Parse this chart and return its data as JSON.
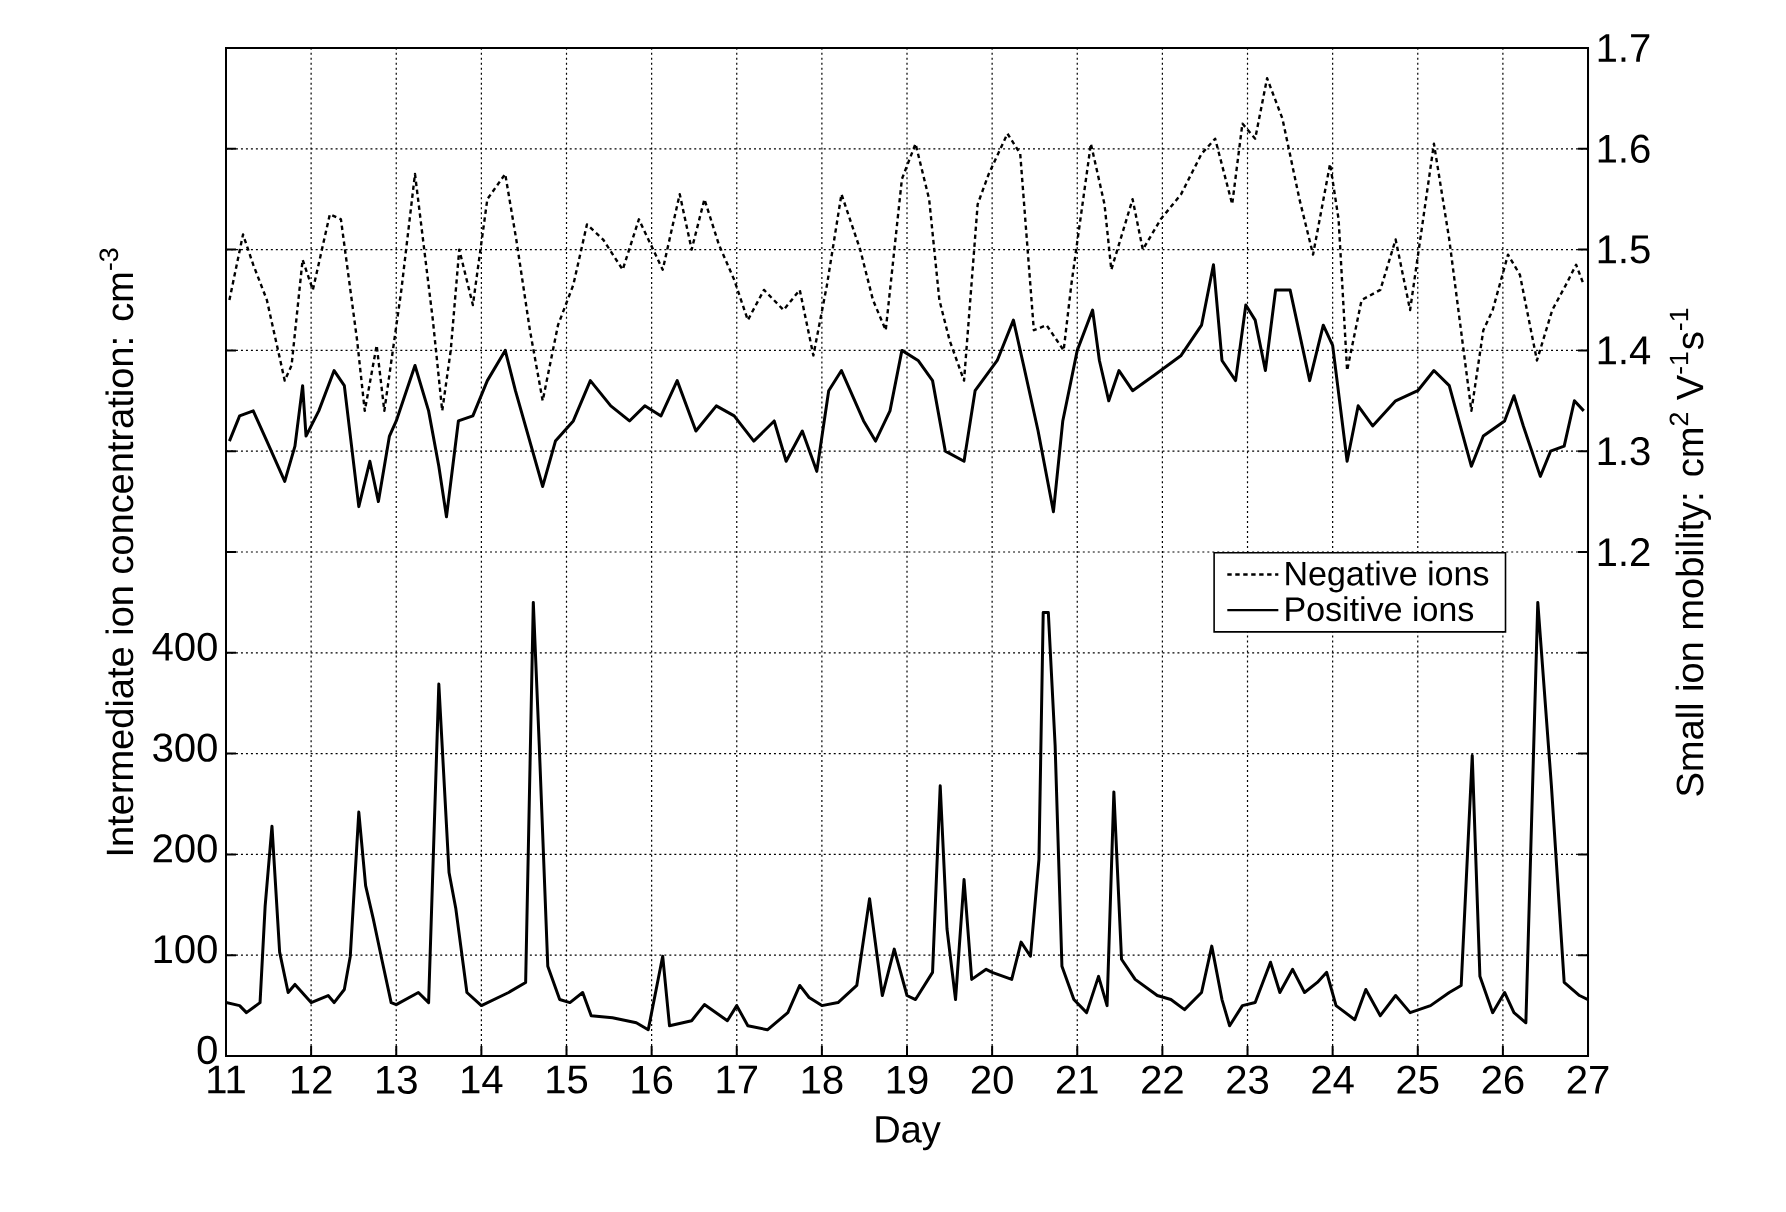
{
  "chart_data": {
    "type": "line",
    "xlabel": "Day",
    "ylabel": "Intermediate ion concentration:  cm$^{-3}$",
    "y2label": "Small ion mobility: cm$^{2}$ V$^{-1}$s$^{-1}$",
    "xlim": [
      11,
      27
    ],
    "xticks": [
      11,
      12,
      13,
      14,
      15,
      16,
      17,
      18,
      19,
      20,
      21,
      22,
      23,
      24,
      25,
      26,
      27
    ],
    "ylim": [
      0,
      1000
    ],
    "yticks": [
      0,
      100,
      200,
      300,
      400,
      {
        "value": 500,
        "label": null
      },
      {
        "value": 600,
        "label": null
      },
      {
        "value": 700,
        "label": null
      },
      {
        "value": 800,
        "label": null
      },
      {
        "value": 900,
        "label": null
      }
    ],
    "y2lim": [
      0.7,
      1.7
    ],
    "y2ticks": [
      {
        "value": 0.8,
        "label": null
      },
      {
        "value": 0.9,
        "label": null
      },
      {
        "value": 1.0,
        "label": null
      },
      {
        "value": 1.1,
        "label": null
      },
      1.2,
      1.3,
      1.4,
      1.5,
      1.6,
      1.7
    ],
    "grid": true,
    "legend": "right",
    "series": [
      {
        "name": "Negative ions",
        "color": "#000000",
        "axis": "y2",
        "line_style": "dotted",
        "x": [
          11.04,
          11.2,
          11.32,
          11.48,
          11.69,
          11.77,
          11.9,
          12.02,
          12.22,
          12.35,
          12.54,
          12.63,
          12.77,
          12.86,
          13.06,
          13.22,
          13.43,
          13.54,
          13.64,
          13.74,
          13.9,
          14.07,
          14.28,
          14.41,
          14.57,
          14.72,
          14.9,
          15.08,
          15.24,
          15.43,
          15.66,
          15.85,
          16.13,
          16.33,
          16.47,
          16.62,
          16.79,
          16.97,
          17.13,
          17.32,
          17.55,
          17.74,
          17.9,
          18.06,
          18.23,
          18.45,
          18.6,
          18.75,
          18.94,
          19.1,
          19.26,
          19.38,
          19.5,
          19.67,
          19.83,
          19.96,
          20.18,
          20.33,
          20.49,
          20.64,
          20.84,
          20.93,
          21.16,
          21.32,
          21.4,
          21.65,
          21.77,
          21.98,
          22.22,
          22.46,
          22.62,
          22.82,
          22.94,
          23.09,
          23.23,
          23.41,
          23.61,
          23.77,
          23.97,
          24.07,
          24.17,
          24.34,
          24.56,
          24.74,
          24.91,
          25.19,
          25.37,
          25.63,
          25.77,
          25.88,
          26.06,
          26.2,
          26.4,
          26.58,
          26.74,
          26.86,
          26.95
        ],
        "values": [
          1.45,
          1.515,
          1.485,
          1.45,
          1.37,
          1.385,
          1.49,
          1.46,
          1.535,
          1.53,
          1.41,
          1.34,
          1.405,
          1.34,
          1.46,
          1.575,
          1.43,
          1.34,
          1.4,
          1.5,
          1.445,
          1.55,
          1.575,
          1.51,
          1.42,
          1.35,
          1.425,
          1.465,
          1.525,
          1.51,
          1.48,
          1.53,
          1.48,
          1.555,
          1.5,
          1.55,
          1.505,
          1.47,
          1.43,
          1.46,
          1.44,
          1.46,
          1.395,
          1.465,
          1.555,
          1.5,
          1.45,
          1.42,
          1.57,
          1.605,
          1.55,
          1.45,
          1.41,
          1.37,
          1.545,
          1.575,
          1.615,
          1.595,
          1.42,
          1.425,
          1.4,
          1.465,
          1.605,
          1.545,
          1.48,
          1.55,
          1.5,
          1.53,
          1.555,
          1.595,
          1.61,
          1.545,
          1.625,
          1.61,
          1.67,
          1.63,
          1.55,
          1.495,
          1.585,
          1.53,
          1.38,
          1.45,
          1.46,
          1.51,
          1.44,
          1.605,
          1.51,
          1.34,
          1.42,
          1.44,
          1.495,
          1.475,
          1.39,
          1.44,
          1.465,
          1.485,
          1.465
        ]
      },
      {
        "name": "Positive ions",
        "color": "#000000",
        "axis": "y2",
        "line_style": "solid",
        "x": [
          11.04,
          11.16,
          11.32,
          11.48,
          11.69,
          11.81,
          11.9,
          11.94,
          12.09,
          12.27,
          12.39,
          12.56,
          12.69,
          12.79,
          12.92,
          13.0,
          13.22,
          13.38,
          13.5,
          13.59,
          13.73,
          13.9,
          14.07,
          14.28,
          14.4,
          14.72,
          14.87,
          15.08,
          15.28,
          15.52,
          15.74,
          15.92,
          16.11,
          16.3,
          16.52,
          16.76,
          16.97,
          17.2,
          17.44,
          17.58,
          17.77,
          17.94,
          18.08,
          18.23,
          18.49,
          18.63,
          18.8,
          18.94,
          19.13,
          19.3,
          19.45,
          19.67,
          19.8,
          20.06,
          20.25,
          20.37,
          20.54,
          20.72,
          20.83,
          21.0,
          21.18,
          21.26,
          21.37,
          21.49,
          21.65,
          21.9,
          22.22,
          22.46,
          22.6,
          22.7,
          22.86,
          22.98,
          23.09,
          23.21,
          23.33,
          23.5,
          23.73,
          23.89,
          24.0,
          24.17,
          24.3,
          24.47,
          24.74,
          25.0,
          25.19,
          25.37,
          25.63,
          25.77,
          26.02,
          26.13,
          26.24,
          26.44,
          26.56,
          26.72,
          26.84,
          26.95
        ],
        "values": [
          1.31,
          1.335,
          1.34,
          1.31,
          1.27,
          1.305,
          1.365,
          1.315,
          1.34,
          1.38,
          1.365,
          1.245,
          1.29,
          1.25,
          1.315,
          1.33,
          1.385,
          1.34,
          1.285,
          1.235,
          1.33,
          1.335,
          1.37,
          1.4,
          1.36,
          1.265,
          1.31,
          1.33,
          1.37,
          1.345,
          1.33,
          1.345,
          1.335,
          1.37,
          1.32,
          1.345,
          1.335,
          1.31,
          1.33,
          1.29,
          1.32,
          1.28,
          1.36,
          1.38,
          1.33,
          1.31,
          1.34,
          1.4,
          1.39,
          1.37,
          1.3,
          1.29,
          1.36,
          1.39,
          1.43,
          1.385,
          1.32,
          1.24,
          1.33,
          1.4,
          1.44,
          1.39,
          1.35,
          1.38,
          1.36,
          1.375,
          1.395,
          1.425,
          1.485,
          1.39,
          1.37,
          1.445,
          1.43,
          1.38,
          1.46,
          1.46,
          1.37,
          1.425,
          1.405,
          1.29,
          1.345,
          1.325,
          1.35,
          1.36,
          1.38,
          1.365,
          1.285,
          1.315,
          1.33,
          1.355,
          1.325,
          1.275,
          1.3,
          1.305,
          1.35,
          1.34
        ]
      },
      {
        "color": "#000000",
        "line_style": "solid",
        "x": [
          11.0,
          11.16,
          11.24,
          11.4,
          11.46,
          11.54,
          11.63,
          11.73,
          11.81,
          12.0,
          12.2,
          12.27,
          12.39,
          12.46,
          12.56,
          12.64,
          12.73,
          12.83,
          12.94,
          13.0,
          13.26,
          13.38,
          13.5,
          13.62,
          13.7,
          13.83,
          14.0,
          14.32,
          14.52,
          14.61,
          14.68,
          14.78,
          14.92,
          15.04,
          15.19,
          15.29,
          15.54,
          15.82,
          15.96,
          16.13,
          16.21,
          16.47,
          16.62,
          16.89,
          17.0,
          17.13,
          17.36,
          17.6,
          17.74,
          17.85,
          18.0,
          18.19,
          18.41,
          18.56,
          18.71,
          18.85,
          19.0,
          19.1,
          19.3,
          19.39,
          19.47,
          19.57,
          19.67,
          19.76,
          19.93,
          20.0,
          20.23,
          20.34,
          20.45,
          20.55,
          20.6,
          20.66,
          20.74,
          20.82,
          20.96,
          21.11,
          21.25,
          21.35,
          21.43,
          21.52,
          21.68,
          21.94,
          22.1,
          22.26,
          22.46,
          22.58,
          22.7,
          22.79,
          22.94,
          23.09,
          23.27,
          23.38,
          23.53,
          23.67,
          23.82,
          23.93,
          24.04,
          24.26,
          24.39,
          24.56,
          24.74,
          24.91,
          25.15,
          25.37,
          25.51,
          25.64,
          25.73,
          25.88,
          26.02,
          26.13,
          26.27,
          26.41,
          26.57,
          26.72,
          26.9,
          27.0
        ],
        "values": [
          53,
          50,
          43,
          53,
          149,
          228,
          103,
          63,
          71,
          53,
          60,
          53,
          66,
          99,
          242,
          169,
          136,
          96,
          53,
          51,
          63,
          53,
          369,
          182,
          146,
          63,
          50,
          63,
          73,
          450,
          308,
          89,
          56,
          53,
          63,
          40,
          38,
          33,
          26,
          99,
          30,
          35,
          51,
          35,
          50,
          30,
          26,
          43,
          70,
          58,
          50,
          53,
          70,
          156,
          60,
          106,
          60,
          56,
          83,
          268,
          126,
          56,
          175,
          76,
          86,
          83,
          76,
          113,
          99,
          195,
          440,
          440,
          308,
          89,
          56,
          43,
          79,
          50,
          262,
          96,
          76,
          60,
          56,
          46,
          63,
          109,
          56,
          30,
          50,
          53,
          93,
          63,
          86,
          63,
          73,
          83,
          50,
          36,
          66,
          40,
          60,
          43,
          50,
          63,
          70,
          298,
          79,
          43,
          63,
          43,
          33,
          450,
          268,
          73,
          60,
          56
        ]
      }
    ]
  }
}
